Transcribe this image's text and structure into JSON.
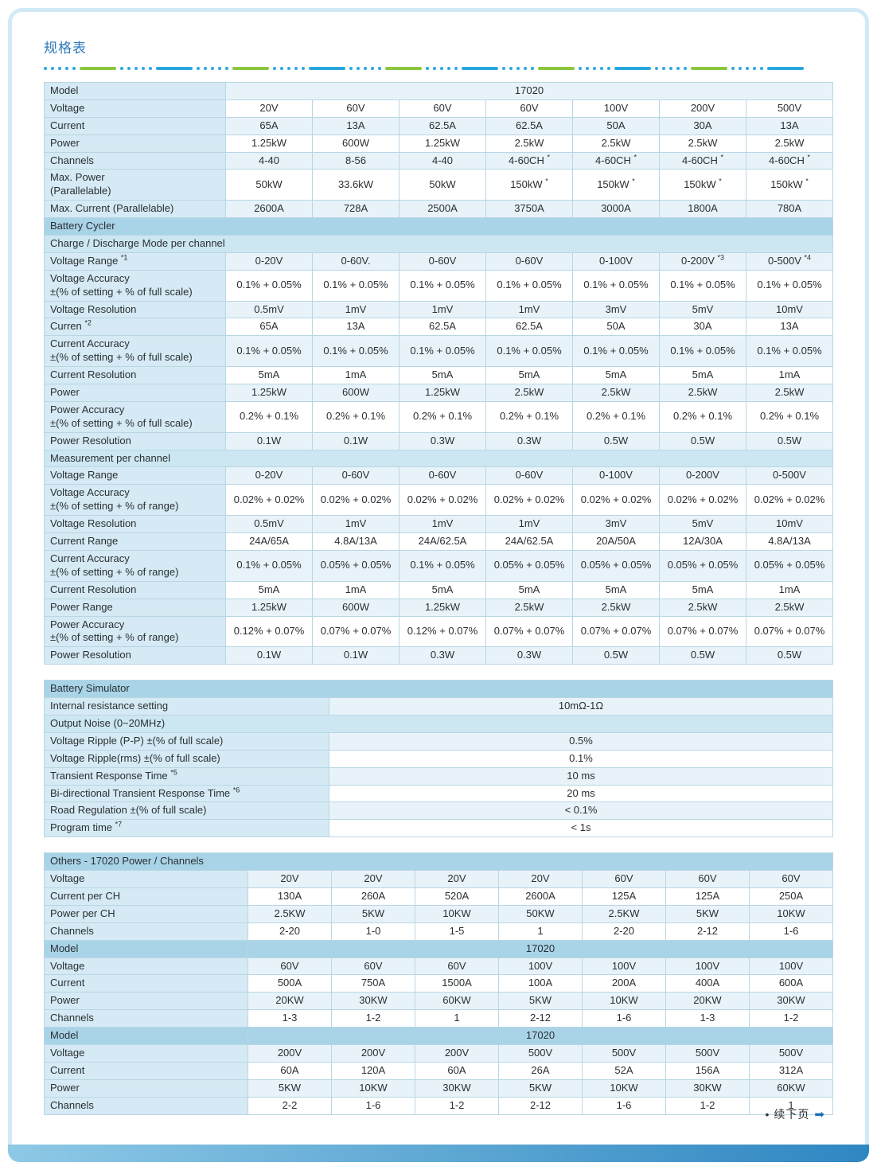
{
  "page": {
    "title": "规格表",
    "footer": {
      "bullet": "•",
      "text": "续下页",
      "arrow": "➡"
    },
    "divider_colors": {
      "blue": "#29a8e0",
      "green": "#8cc63f"
    },
    "accent_colors": {
      "header_blue": "#a9d4e7",
      "label_blue": "#d5eaf4",
      "bar_blue": "#2f87c2"
    }
  },
  "tables": {
    "main": {
      "rows": [
        {
          "type": "single",
          "label": "Model",
          "value": "17020"
        },
        {
          "type": "data",
          "label": "Voltage",
          "cells": [
            "20V",
            "60V",
            "60V",
            "60V",
            "100V",
            "200V",
            "500V"
          ]
        },
        {
          "type": "data",
          "label": "Current",
          "cells": [
            "65A",
            "13A",
            "62.5A",
            "62.5A",
            "50A",
            "30A",
            "13A"
          ]
        },
        {
          "type": "data",
          "label": "Power",
          "cells": [
            "1.25kW",
            "600W",
            "1.25kW",
            "2.5kW",
            "2.5kW",
            "2.5kW",
            "2.5kW"
          ]
        },
        {
          "type": "data",
          "label": "Channels",
          "cells": [
            "4-40",
            "8-56",
            "4-40",
            "4-60CH *",
            "4-60CH *",
            "4-60CH *",
            "4-60CH *"
          ]
        },
        {
          "type": "data",
          "label": "Max. Power\n(Parallelable)",
          "cells": [
            "50kW",
            "33.6kW",
            "50kW",
            "150kW *",
            "150kW *",
            "150kW *",
            "150kW *"
          ]
        },
        {
          "type": "data",
          "label": "Max. Current (Parallelable)",
          "cells": [
            "2600A",
            "728A",
            "2500A",
            "3750A",
            "3000A",
            "1800A",
            "780A"
          ]
        },
        {
          "type": "section",
          "label": "Battery Cycler"
        },
        {
          "type": "section",
          "variant": "sub",
          "label": "Charge / Discharge Mode per channel"
        },
        {
          "type": "data",
          "label": "Voltage Range *1",
          "cells": [
            "0-20V",
            "0-60V.",
            "0-60V",
            "0-60V",
            "0-100V",
            "0-200V *3",
            "0-500V *4"
          ]
        },
        {
          "type": "data",
          "label": "Voltage Accuracy\n±(% of setting + % of full scale)",
          "cells": [
            "0.1% + 0.05%",
            "0.1% + 0.05%",
            "0.1% + 0.05%",
            "0.1% + 0.05%",
            "0.1% + 0.05%",
            "0.1% + 0.05%",
            "0.1% + 0.05%"
          ]
        },
        {
          "type": "data",
          "label": "Voltage Resolution",
          "cells": [
            "0.5mV",
            "1mV",
            "1mV",
            "1mV",
            "3mV",
            "5mV",
            "10mV"
          ]
        },
        {
          "type": "data",
          "label": "Curren *2",
          "cells": [
            "65A",
            "13A",
            "62.5A",
            "62.5A",
            "50A",
            "30A",
            "13A"
          ]
        },
        {
          "type": "data",
          "label": "Current Accuracy\n±(% of setting + % of full scale)",
          "cells": [
            "0.1% + 0.05%",
            "0.1% + 0.05%",
            "0.1% + 0.05%",
            "0.1% + 0.05%",
            "0.1% + 0.05%",
            "0.1% + 0.05%",
            "0.1% + 0.05%"
          ]
        },
        {
          "type": "data",
          "label": "Current Resolution",
          "cells": [
            "5mA",
            "1mA",
            "5mA",
            "5mA",
            "5mA",
            "5mA",
            "1mA"
          ]
        },
        {
          "type": "data",
          "label": "Power",
          "cells": [
            "1.25kW",
            "600W",
            "1.25kW",
            "2.5kW",
            "2.5kW",
            "2.5kW",
            "2.5kW"
          ]
        },
        {
          "type": "data",
          "label": "Power Accuracy\n±(% of setting + % of full scale)",
          "cells": [
            "0.2% + 0.1%",
            "0.2% + 0.1%",
            "0.2% + 0.1%",
            "0.2% + 0.1%",
            "0.2% + 0.1%",
            "0.2% + 0.1%",
            "0.2% + 0.1%"
          ]
        },
        {
          "type": "data",
          "label": "Power Resolution",
          "cells": [
            "0.1W",
            "0.1W",
            "0.3W",
            "0.3W",
            "0.5W",
            "0.5W",
            "0.5W"
          ]
        },
        {
          "type": "section",
          "variant": "sub",
          "label": "Measurement per channel"
        },
        {
          "type": "data",
          "label": "Voltage Range",
          "cells": [
            "0-20V",
            "0-60V",
            "0-60V",
            "0-60V",
            "0-100V",
            "0-200V",
            "0-500V"
          ]
        },
        {
          "type": "data",
          "label": "Voltage Accuracy\n±(% of setting + % of range)",
          "cells": [
            "0.02% + 0.02%",
            "0.02% + 0.02%",
            "0.02% + 0.02%",
            "0.02% + 0.02%",
            "0.02% + 0.02%",
            "0.02% + 0.02%",
            "0.02% + 0.02%"
          ]
        },
        {
          "type": "data",
          "label": "Voltage Resolution",
          "cells": [
            "0.5mV",
            "1mV",
            "1mV",
            "1mV",
            "3mV",
            "5mV",
            "10mV"
          ]
        },
        {
          "type": "data",
          "label": "Current Range",
          "cells": [
            "24A/65A",
            "4.8A/13A",
            "24A/62.5A",
            "24A/62.5A",
            "20A/50A",
            "12A/30A",
            "4.8A/13A"
          ]
        },
        {
          "type": "data",
          "label": "Current Accuracy\n±(% of setting + % of range)",
          "cells": [
            "0.1% + 0.05%",
            "0.05% + 0.05%",
            "0.1% + 0.05%",
            "0.05% + 0.05%",
            "0.05% + 0.05%",
            "0.05% + 0.05%",
            "0.05% + 0.05%"
          ]
        },
        {
          "type": "data",
          "label": "Current Resolution",
          "cells": [
            "5mA",
            "1mA",
            "5mA",
            "5mA",
            "5mA",
            "5mA",
            "1mA"
          ]
        },
        {
          "type": "data",
          "label": "Power Range",
          "cells": [
            "1.25kW",
            "600W",
            "1.25kW",
            "2.5kW",
            "2.5kW",
            "2.5kW",
            "2.5kW"
          ]
        },
        {
          "type": "data",
          "label": "Power Accuracy\n±(% of setting + % of range)",
          "cells": [
            "0.12% + 0.07%",
            "0.07% + 0.07%",
            "0.12% + 0.07%",
            "0.07% + 0.07%",
            "0.07% + 0.07%",
            "0.07% + 0.07%",
            "0.07% + 0.07%"
          ]
        },
        {
          "type": "data",
          "label": "Power Resolution",
          "cells": [
            "0.1W",
            "0.1W",
            "0.3W",
            "0.3W",
            "0.5W",
            "0.5W",
            "0.5W"
          ]
        }
      ]
    },
    "simulator": {
      "rows": [
        {
          "type": "section",
          "label": "Battery Simulator"
        },
        {
          "type": "single",
          "label": "Internal resistance setting",
          "value": "10mΩ-1Ω"
        },
        {
          "type": "section",
          "variant": "sub",
          "label": "Output Noise (0~20MHz)"
        },
        {
          "type": "single",
          "label": "Voltage Ripple (P-P) ±(% of full scale)",
          "value": "0.5%"
        },
        {
          "type": "single",
          "label": "Voltage Ripple(rms) ±(% of full scale)",
          "value": "0.1%"
        },
        {
          "type": "single",
          "label": "Transient Response Time *5",
          "value": "10 ms"
        },
        {
          "type": "single",
          "label": "Bi-directional Transient Response Time *6",
          "value": "20 ms"
        },
        {
          "type": "single",
          "label": "Road Regulation ±(% of full scale)",
          "value": "< 0.1%"
        },
        {
          "type": "single",
          "label": "Program time *7",
          "value": "< 1s"
        }
      ]
    },
    "others": {
      "rows": [
        {
          "type": "section",
          "label": "Others - 17020 Power / Channels"
        },
        {
          "type": "data",
          "label": "Voltage",
          "cells": [
            "20V",
            "20V",
            "20V",
            "20V",
            "60V",
            "60V",
            "60V"
          ]
        },
        {
          "type": "data",
          "label": "Current per CH",
          "cells": [
            "130A",
            "260A",
            "520A",
            "2600A",
            "125A",
            "125A",
            "250A"
          ]
        },
        {
          "type": "data",
          "label": "Power per CH",
          "cells": [
            "2.5KW",
            "5KW",
            "10KW",
            "50KW",
            "2.5KW",
            "5KW",
            "10KW"
          ]
        },
        {
          "type": "data",
          "label": "Channels",
          "cells": [
            "2-20",
            "1-0",
            "1-5",
            "1",
            "2-20",
            "2-12",
            "1-6"
          ]
        },
        {
          "type": "model",
          "label": "Model",
          "value": "17020"
        },
        {
          "type": "data",
          "label": "Voltage",
          "cells": [
            "60V",
            "60V",
            "60V",
            "100V",
            "100V",
            "100V",
            "100V"
          ]
        },
        {
          "type": "data",
          "label": "Current",
          "cells": [
            "500A",
            "750A",
            "1500A",
            "100A",
            "200A",
            "400A",
            "600A"
          ]
        },
        {
          "type": "data",
          "label": "Power",
          "cells": [
            "20KW",
            "30KW",
            "60KW",
            "5KW",
            "10KW",
            "20KW",
            "30KW"
          ]
        },
        {
          "type": "data",
          "label": "Channels",
          "cells": [
            "1-3",
            "1-2",
            "1",
            "2-12",
            "1-6",
            "1-3",
            "1-2"
          ]
        },
        {
          "type": "model",
          "label": "Model",
          "value": "17020"
        },
        {
          "type": "data",
          "label": "Voltage",
          "cells": [
            "200V",
            "200V",
            "200V",
            "500V",
            "500V",
            "500V",
            "500V"
          ]
        },
        {
          "type": "data",
          "label": "Current",
          "cells": [
            "60A",
            "120A",
            "60A",
            "26A",
            "52A",
            "156A",
            "312A"
          ]
        },
        {
          "type": "data",
          "label": "Power",
          "cells": [
            "5KW",
            "10KW",
            "30KW",
            "5KW",
            "10KW",
            "30KW",
            "60KW"
          ]
        },
        {
          "type": "data",
          "label": "Channels",
          "cells": [
            "2-2",
            "1-6",
            "1-2",
            "2-12",
            "1-6",
            "1-2",
            "1"
          ]
        }
      ]
    }
  }
}
